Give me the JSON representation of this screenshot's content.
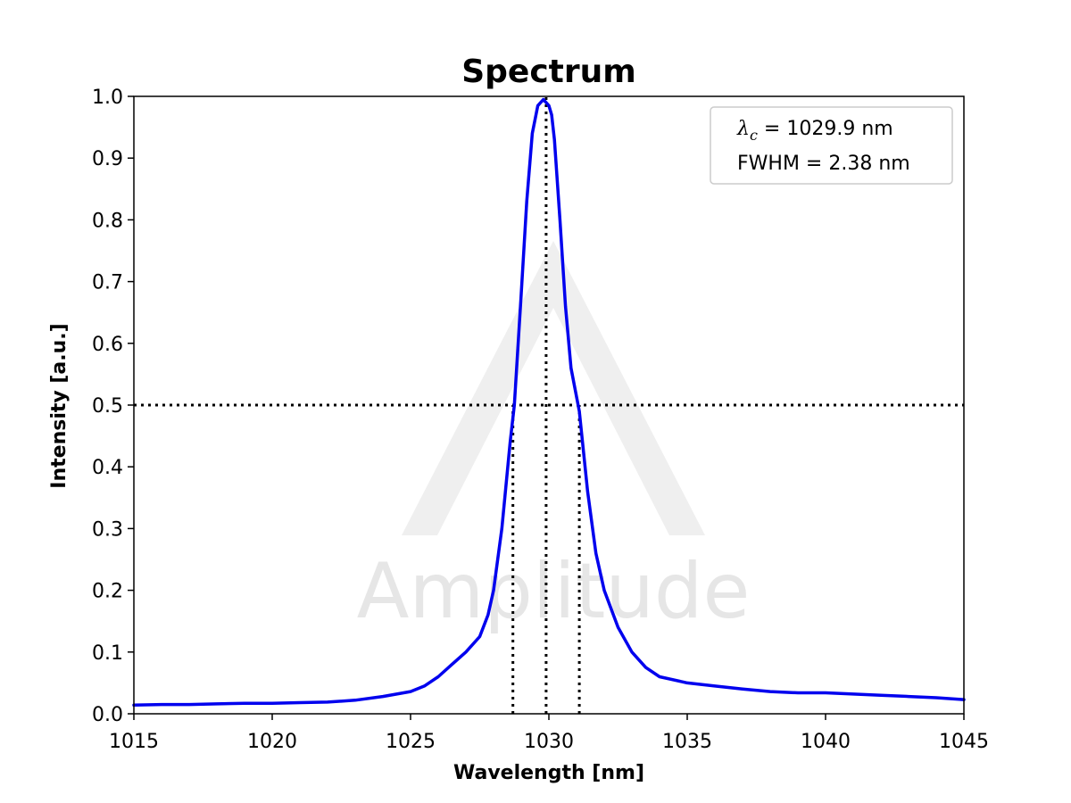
{
  "watermark": {
    "text": "Amplitude",
    "color": "#e6e6e6"
  },
  "chart_data": {
    "type": "line",
    "title": "Spectrum",
    "xlabel": "Wavelength [nm]",
    "ylabel": "Intensity [a.u.]",
    "xlim": [
      1015,
      1045
    ],
    "ylim": [
      0.0,
      1.0
    ],
    "xticks": [
      1015,
      1020,
      1025,
      1030,
      1035,
      1040,
      1045
    ],
    "xtick_labels": [
      "1015",
      "1020",
      "1025",
      "1030",
      "1035",
      "1040",
      "1045"
    ],
    "yticks": [
      0.0,
      0.1,
      0.2,
      0.3,
      0.4,
      0.5,
      0.6,
      0.7,
      0.8,
      0.9,
      1.0
    ],
    "ytick_labels": [
      "0.0",
      "0.1",
      "0.2",
      "0.3",
      "0.4",
      "0.5",
      "0.6",
      "0.7",
      "0.8",
      "0.9",
      "1.0"
    ],
    "grid": false,
    "legend_placement": "top-right",
    "line_color": "#0000ee",
    "series": [
      {
        "x": [
          1015,
          1016,
          1017,
          1018,
          1019,
          1020,
          1021,
          1022,
          1023,
          1024,
          1025,
          1025.5,
          1026,
          1026.5,
          1027,
          1027.5,
          1027.8,
          1028,
          1028.3,
          1028.6,
          1028.75,
          1029,
          1029.2,
          1029.4,
          1029.6,
          1029.8,
          1029.9,
          1030,
          1030.1,
          1030.2,
          1030.4,
          1030.6,
          1030.8,
          1031.1,
          1031.4,
          1031.7,
          1032,
          1032.5,
          1033,
          1033.5,
          1034,
          1035,
          1036,
          1037,
          1038,
          1039,
          1040,
          1041,
          1042,
          1043,
          1044,
          1045
        ],
        "y": [
          0.014,
          0.015,
          0.015,
          0.016,
          0.017,
          0.017,
          0.018,
          0.019,
          0.022,
          0.028,
          0.036,
          0.045,
          0.06,
          0.08,
          0.1,
          0.125,
          0.16,
          0.2,
          0.3,
          0.44,
          0.5,
          0.68,
          0.83,
          0.94,
          0.985,
          0.995,
          0.99,
          0.985,
          0.97,
          0.93,
          0.8,
          0.66,
          0.56,
          0.49,
          0.36,
          0.26,
          0.2,
          0.14,
          0.1,
          0.075,
          0.06,
          0.05,
          0.045,
          0.04,
          0.036,
          0.034,
          0.034,
          0.032,
          0.03,
          0.028,
          0.026,
          0.023
        ]
      }
    ],
    "reference_lines": {
      "half_max_y": 0.5,
      "center_x": 1029.9,
      "fwhm_left_x": 1028.7,
      "fwhm_right_x": 1031.1,
      "style": "dotted",
      "color": "#000000"
    },
    "legend": {
      "lambda_symbol": "λ",
      "lambda_subscript": "c",
      "lambda_value": " = 1029.9 nm",
      "fwhm_text": "FWHM = 2.38 nm"
    }
  }
}
